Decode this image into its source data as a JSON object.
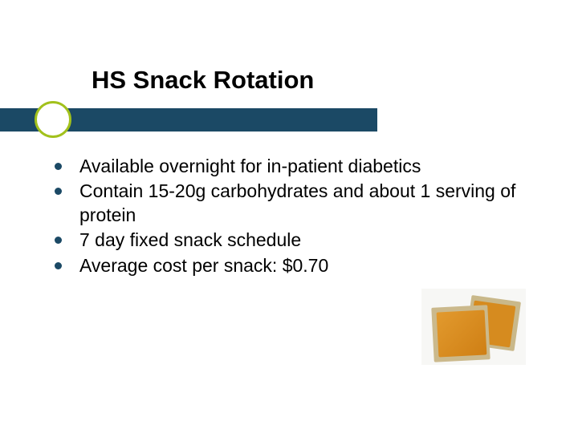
{
  "slide": {
    "title": "HS Snack Rotation",
    "bullets": [
      "Available overnight for in-patient diabetics",
      "Contain 15-20g carbohydrates and about 1 serving of protein",
      "7 day fixed snack schedule",
      "Average cost per snack: $0.70"
    ]
  },
  "styling": {
    "title_fontsize": 31,
    "title_color": "#000000",
    "bullet_fontsize": 23,
    "bullet_color": "#000000",
    "bullet_dot_color": "#1b4965",
    "underline_bar_color": "#1b4965",
    "accent_circle_border": "#a2c11c",
    "background_color": "#ffffff",
    "image_cheese_color": "#d68b1f",
    "image_cracker_color": "#cbb98c"
  }
}
